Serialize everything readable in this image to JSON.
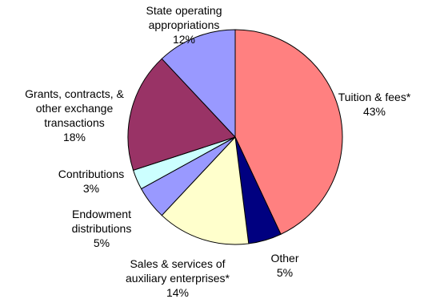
{
  "chart_data": {
    "type": "pie",
    "title": "",
    "start_angle_deg": 0,
    "direction": "clockwise",
    "slices": [
      {
        "lines": [
          "Tuition & fees*",
          "43%"
        ],
        "value": 43,
        "color": "#FF8080"
      },
      {
        "lines": [
          "Other",
          "5%"
        ],
        "value": 5,
        "color": "#000080"
      },
      {
        "lines": [
          "Sales & services of",
          "auxiliary enterprises*",
          "14%"
        ],
        "value": 14,
        "color": "#FFFFCC"
      },
      {
        "lines": [
          "Endowment",
          "distributions",
          "5%"
        ],
        "value": 5,
        "color": "#9999FF"
      },
      {
        "lines": [
          "Contributions",
          "3%"
        ],
        "value": 3,
        "color": "#CCFFFF"
      },
      {
        "lines": [
          "Grants, contracts, &",
          "other exchange",
          "transactions",
          "18%"
        ],
        "value": 18,
        "color": "#993366"
      },
      {
        "lines": [
          "State operating",
          "appropriations",
          "12%"
        ],
        "value": 12,
        "color": "#9999FF"
      }
    ]
  }
}
